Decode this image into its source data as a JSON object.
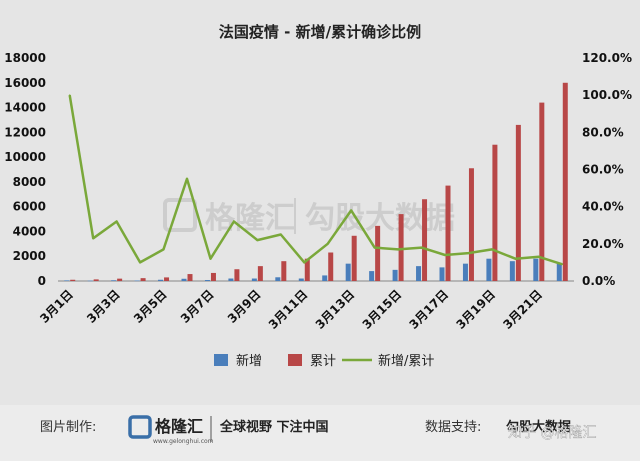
{
  "chart_data": {
    "type": "bar+line",
    "title": "法国疫情 - 新增/累计确诊比例",
    "categories": [
      "3月1日",
      "3月2日",
      "3月3日",
      "3月4日",
      "3月5日",
      "3月6日",
      "3月7日",
      "3月8日",
      "3月9日",
      "3月10日",
      "3月11日",
      "3月12日",
      "3月13日",
      "3月14日",
      "3月15日",
      "3月16日",
      "3月17日",
      "3月18日",
      "3月19日",
      "3月20日",
      "3月21日",
      "3月22日"
    ],
    "x_tick_labels": [
      "3月1日",
      "3月3日",
      "3月5日",
      "3月7日",
      "3月9日",
      "3月11日",
      "3月13日",
      "3月15日",
      "3月17日",
      "3月19日",
      "3月21日"
    ],
    "series": [
      {
        "name": "新增",
        "type": "bar",
        "axis": "left",
        "color": "#4a7ebb",
        "values": [
          50,
          30,
          60,
          40,
          100,
          180,
          80,
          200,
          200,
          300,
          200,
          450,
          1400,
          800,
          900,
          1200,
          1100,
          1400,
          1800,
          1600,
          1800,
          1400
        ]
      },
      {
        "name": "累计",
        "type": "bar",
        "axis": "left",
        "color": "#b84747",
        "values": [
          100,
          130,
          190,
          230,
          290,
          560,
          650,
          950,
          1200,
          1600,
          1800,
          2300,
          3650,
          4450,
          5400,
          6600,
          7700,
          9100,
          11000,
          12600,
          14400,
          16000
        ]
      },
      {
        "name": "新增/累计",
        "type": "line",
        "axis": "right",
        "color": "#7aa83a",
        "values": [
          1.0,
          0.23,
          0.32,
          0.1,
          0.17,
          0.55,
          0.12,
          0.32,
          0.22,
          0.25,
          0.1,
          0.2,
          0.38,
          0.18,
          0.17,
          0.18,
          0.14,
          0.15,
          0.17,
          0.12,
          0.13,
          0.09
        ]
      }
    ],
    "y_left": {
      "min": 0,
      "max": 18000,
      "step": 2000,
      "ticks": [
        "0",
        "2000",
        "4000",
        "6000",
        "8000",
        "10000",
        "12000",
        "14000",
        "16000",
        "18000"
      ]
    },
    "y_right": {
      "min": 0,
      "max": 1.2,
      "step": 0.2,
      "ticks": [
        "0.0%",
        "20.0%",
        "40.0%",
        "60.0%",
        "80.0%",
        "100.0%",
        "120.0%"
      ]
    },
    "legend_position": "bottom",
    "grid": false
  },
  "watermark": {
    "logo_text": "格隆汇",
    "brand_text": "勾股大数据"
  },
  "footer": {
    "maker_label": "图片制作:",
    "logo_text": "格隆汇",
    "logo_url": "www.gelonghui.com",
    "slogan": "全球视野 下注中国",
    "support_label": "数据支持:",
    "support_name": "勾股大数据",
    "zhihu_credit": "知乎 @格隆汇"
  },
  "colors": {
    "background": "#e5e5e5",
    "plot_area": "#e5e5e5",
    "footer_bg": "#ececec"
  }
}
